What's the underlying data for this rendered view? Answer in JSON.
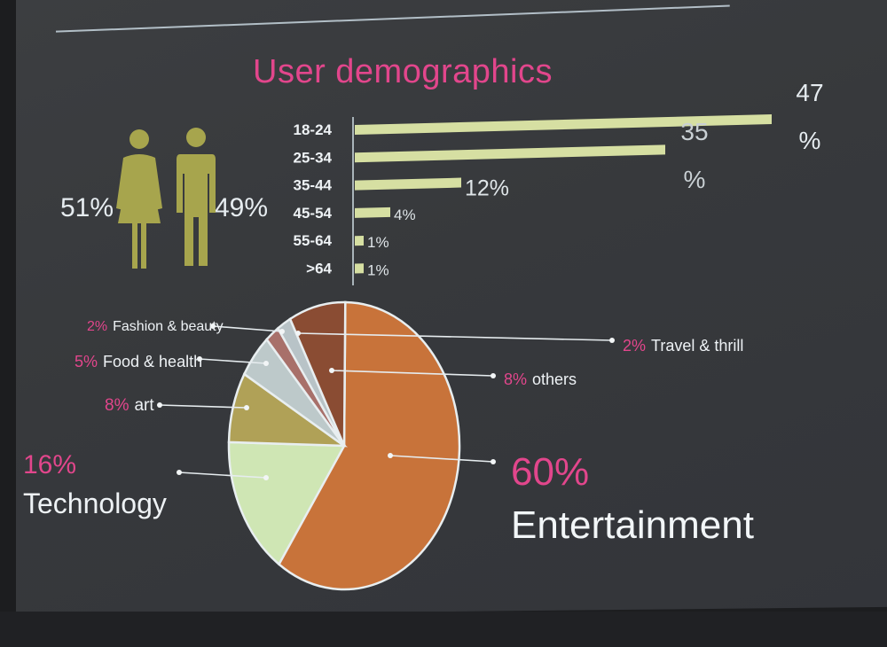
{
  "slide": {
    "title": "User demographics"
  },
  "gender": {
    "female_pct": "51%",
    "male_pct": "49%",
    "female_icon": "female-icon",
    "male_icon": "male-icon",
    "icon_color": "#a7a54d"
  },
  "chart_data": [
    {
      "type": "bar",
      "orientation": "horizontal",
      "title": "",
      "categories": [
        "18-24",
        "25-34",
        "35-44",
        "45-54",
        "55-64",
        ">64"
      ],
      "values": [
        47,
        35,
        12,
        4,
        1,
        1
      ],
      "value_labels": [
        "47 %",
        "35 %",
        "12%",
        "4%",
        "1%",
        "1%"
      ],
      "bar_color": "#d6dfa2",
      "grid": false,
      "xlim": [
        0,
        47
      ]
    },
    {
      "type": "pie",
      "title": "",
      "slices": [
        {
          "label": "Entertainment",
          "pct_label": "60%",
          "value": 60,
          "color": "#c8733a"
        },
        {
          "label": "Technology",
          "pct_label": "16%",
          "value": 16,
          "color": "#cfe6b4"
        },
        {
          "label": "art",
          "pct_label": "8%",
          "value": 8,
          "color": "#b0a157"
        },
        {
          "label": "Food & health",
          "pct_label": "5%",
          "value": 5,
          "color": "#bdc9ca"
        },
        {
          "label": "Fashion & beauty",
          "pct_label": "2%",
          "value": 2,
          "color": "#a8706a"
        },
        {
          "label": "Travel & thrill",
          "pct_label": "2%",
          "value": 2,
          "color": "#b8c3c7"
        },
        {
          "label": "others",
          "pct_label": "8%",
          "value": 8,
          "color": "#8a4c33"
        }
      ],
      "outline_color": "#e8eef0"
    }
  ]
}
